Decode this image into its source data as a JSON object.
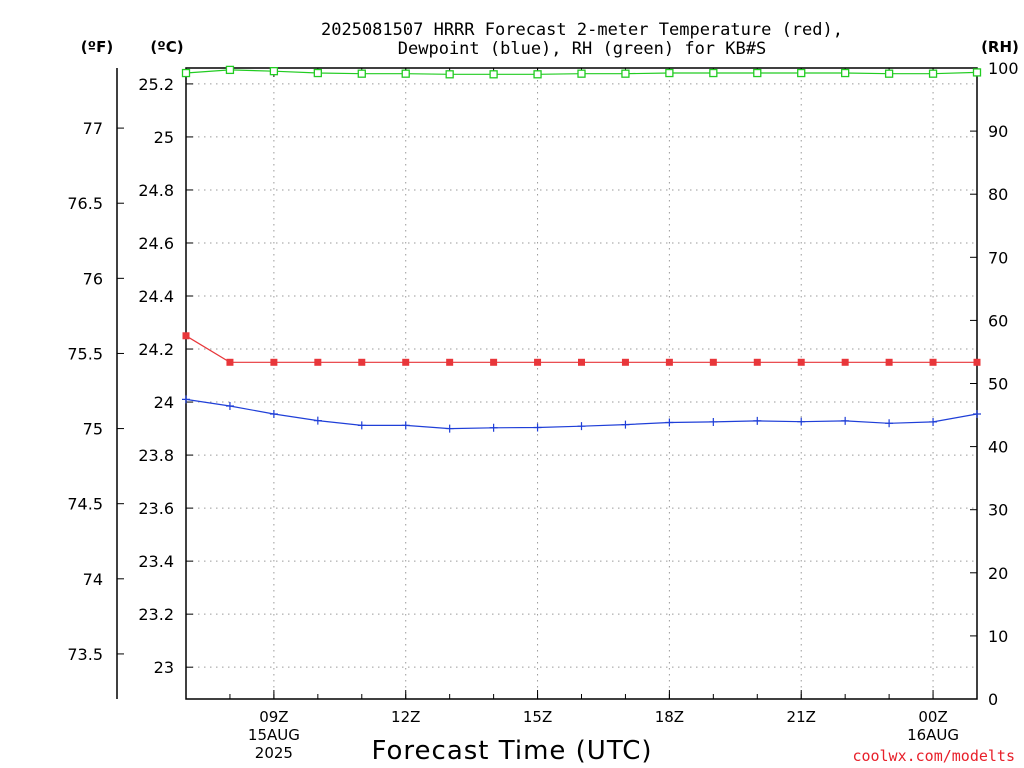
{
  "chart_data": {
    "type": "line",
    "title_line1": "2025081507 HRRR Forecast 2-meter Temperature (red),",
    "title_line2": "Dewpoint (blue), RH (green) for KB#S",
    "axis_unit_labels": {
      "fahrenheit": "(ºF)",
      "celsius": "(ºC)",
      "rh": "(RH)"
    },
    "xlabel": "Forecast Time (UTC)",
    "x_hours": [
      7,
      8,
      9,
      10,
      11,
      12,
      13,
      14,
      15,
      16,
      17,
      18,
      19,
      20,
      21,
      22,
      23,
      24,
      25
    ],
    "x_range": [
      7,
      25
    ],
    "x_ticks": [
      {
        "x": 9,
        "lines": [
          "09Z",
          "15AUG",
          "2025"
        ]
      },
      {
        "x": 12,
        "lines": [
          "12Z"
        ]
      },
      {
        "x": 15,
        "lines": [
          "15Z"
        ]
      },
      {
        "x": 18,
        "lines": [
          "18Z"
        ]
      },
      {
        "x": 21,
        "lines": [
          "21Z"
        ]
      },
      {
        "x": 24,
        "lines": [
          "00Z",
          "16AUG"
        ]
      }
    ],
    "celsius_axis": {
      "range": [
        22.88,
        25.26
      ],
      "ticks": [
        "23",
        "23.2",
        "23.4",
        "23.6",
        "23.8",
        "24",
        "24.2",
        "24.4",
        "24.6",
        "24.8",
        "25",
        "25.2"
      ]
    },
    "fahrenheit_axis": {
      "range": [
        73.2,
        77.4
      ],
      "ticks": [
        "73.5",
        "74",
        "74.5",
        "75",
        "75.5",
        "76",
        "76.5",
        "77"
      ]
    },
    "rh_axis": {
      "range": [
        0,
        100
      ],
      "ticks": [
        "0",
        "10",
        "20",
        "30",
        "40",
        "50",
        "60",
        "70",
        "80",
        "90",
        "100"
      ]
    },
    "grid": true,
    "series": [
      {
        "name": "Temperature",
        "color": "#e8363a",
        "axis": "celsius",
        "marker": "filled-square",
        "values": [
          24.25,
          24.15,
          24.15,
          24.15,
          24.15,
          24.15,
          24.15,
          24.15,
          24.15,
          24.15,
          24.15,
          24.15,
          24.15,
          24.15,
          24.15,
          24.15,
          24.15,
          24.15,
          24.15
        ]
      },
      {
        "name": "Dewpoint",
        "color": "#1f3fd8",
        "axis": "celsius",
        "marker": "plus",
        "values": [
          24.01,
          23.985,
          23.955,
          23.93,
          23.912,
          23.912,
          23.9,
          23.903,
          23.904,
          23.909,
          23.915,
          23.923,
          23.925,
          23.929,
          23.926,
          23.929,
          23.92,
          23.925,
          23.955
        ]
      },
      {
        "name": "RH",
        "color": "#22cc22",
        "axis": "rh",
        "marker": "open-square",
        "values": [
          99.2,
          99.7,
          99.5,
          99.2,
          99.1,
          99.1,
          99.0,
          99.0,
          99.0,
          99.1,
          99.1,
          99.2,
          99.2,
          99.2,
          99.2,
          99.2,
          99.1,
          99.1,
          99.3
        ]
      }
    ]
  },
  "credit": "coolwx.com/modelts"
}
